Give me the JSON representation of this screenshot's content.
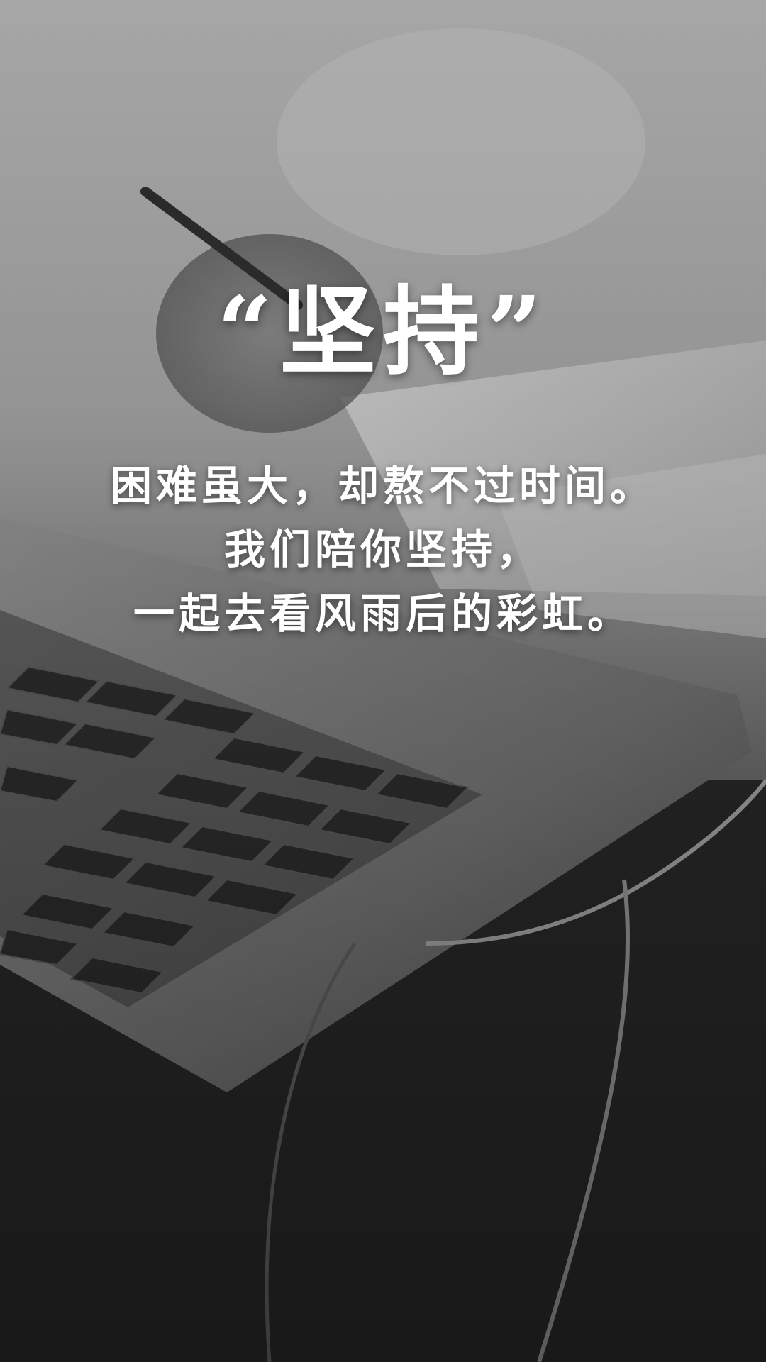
{
  "headline": "“坚持”",
  "body_lines": [
    "困难虽大，却熬不过时间。",
    "我们陪你坚持，",
    "一起去看风雨后的彩虹。"
  ],
  "photo": {
    "subject": "laptop-keyboard-and-hand-writing-icon"
  }
}
